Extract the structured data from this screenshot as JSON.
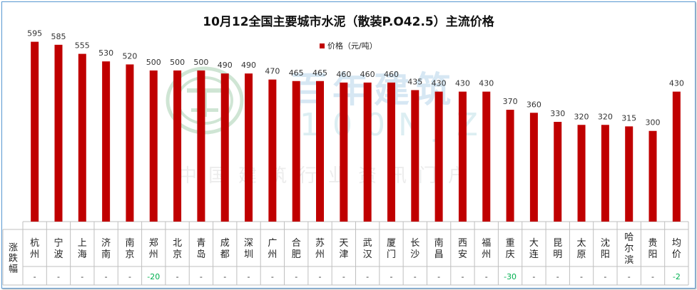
{
  "chart_data": {
    "type": "bar",
    "title": "10月12全国主要城市水泥（散装P.O42.5）主流价格",
    "legend": "价格（元/吨）",
    "legend_position": "top-center",
    "xlabel": "",
    "ylabel": "",
    "ylim": [
      0,
      620
    ],
    "grid": false,
    "bar_color": "#c00000",
    "categories": [
      "杭州",
      "宁波",
      "上海",
      "济南",
      "南京",
      "郑州",
      "北京",
      "青岛",
      "成都",
      "深圳",
      "广州",
      "合肥",
      "苏州",
      "天津",
      "武汉",
      "厦门",
      "长沙",
      "南昌",
      "西安",
      "福州",
      "重庆",
      "大连",
      "昆明",
      "太原",
      "沈阳",
      "哈尔滨",
      "贵阳",
      "均价"
    ],
    "series": [
      {
        "name": "价格（元/吨）",
        "values": [
          595,
          585,
          555,
          530,
          520,
          500,
          500,
          500,
          490,
          490,
          470,
          465,
          465,
          460,
          460,
          460,
          435,
          430,
          430,
          430,
          370,
          360,
          330,
          320,
          320,
          315,
          300,
          430
        ]
      }
    ],
    "table_row_label": "涨跌幅",
    "change": [
      "-",
      "-",
      "-",
      "-",
      "-",
      "-20",
      "-",
      "-",
      "-",
      "-",
      "-",
      "-",
      "-",
      "-",
      "-",
      "-",
      "-",
      "-",
      "-",
      "-",
      "-30",
      "-",
      "-",
      "-",
      "-",
      "-",
      "-",
      "-2"
    ]
  },
  "watermark": {
    "cn_name": "百年建筑",
    "en_name": "100NJZ",
    "slogan": "中国建筑行业资讯门户"
  },
  "colors": {
    "bar": "#c00000",
    "positive_change": "#00b050",
    "axis": "#bfbfbf",
    "frame": "#5b9bd5"
  }
}
